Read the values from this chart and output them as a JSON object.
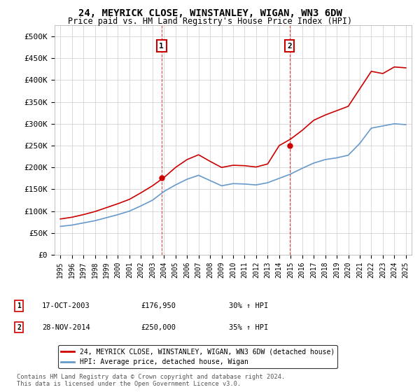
{
  "title": "24, MEYRICK CLOSE, WINSTANLEY, WIGAN, WN3 6DW",
  "subtitle": "Price paid vs. HM Land Registry's House Price Index (HPI)",
  "ylabel_ticks": [
    "£0",
    "£50K",
    "£100K",
    "£150K",
    "£200K",
    "£250K",
    "£300K",
    "£350K",
    "£400K",
    "£450K",
    "£500K"
  ],
  "ytick_vals": [
    0,
    50000,
    100000,
    150000,
    200000,
    250000,
    300000,
    350000,
    400000,
    450000,
    500000
  ],
  "ylim": [
    0,
    525000
  ],
  "xlim_start": 1994.5,
  "xlim_end": 2025.5,
  "xtick_years": [
    1995,
    1996,
    1997,
    1998,
    1999,
    2000,
    2001,
    2002,
    2003,
    2004,
    2005,
    2006,
    2007,
    2008,
    2009,
    2010,
    2011,
    2012,
    2013,
    2014,
    2015,
    2016,
    2017,
    2018,
    2019,
    2020,
    2021,
    2022,
    2023,
    2024,
    2025
  ],
  "purchase1_x": 2003.79,
  "purchase1_y": 176950,
  "purchase1_label": "1",
  "purchase1_date": "17-OCT-2003",
  "purchase1_price": "£176,950",
  "purchase1_hpi": "30% ↑ HPI",
  "purchase2_x": 2014.91,
  "purchase2_y": 250000,
  "purchase2_label": "2",
  "purchase2_date": "28-NOV-2014",
  "purchase2_price": "£250,000",
  "purchase2_hpi": "35% ↑ HPI",
  "line1_color": "#cc0000",
  "line2_color": "#6699cc",
  "legend1_label": "24, MEYRICK CLOSE, WINSTANLEY, WIGAN, WN3 6DW (detached house)",
  "legend2_label": "HPI: Average price, detached house, Wigan",
  "footnote": "Contains HM Land Registry data © Crown copyright and database right 2024.\nThis data is licensed under the Open Government Licence v3.0.",
  "background_color": "#ffffff",
  "grid_color": "#cccccc",
  "vline_color": "#cc0000",
  "marker_box_color": "#cc0000",
  "years_hpi": [
    1995,
    1996,
    1997,
    1998,
    1999,
    2000,
    2001,
    2002,
    2003,
    2004,
    2005,
    2006,
    2007,
    2008,
    2009,
    2010,
    2011,
    2012,
    2013,
    2014,
    2015,
    2016,
    2017,
    2018,
    2019,
    2020,
    2021,
    2022,
    2023,
    2024,
    2025
  ],
  "hpi_vals": [
    65000,
    68000,
    73000,
    78000,
    85000,
    92000,
    100000,
    112000,
    125000,
    145000,
    160000,
    173000,
    182000,
    170000,
    158000,
    163000,
    162000,
    160000,
    165000,
    175000,
    185000,
    198000,
    210000,
    218000,
    222000,
    228000,
    255000,
    290000,
    295000,
    300000,
    298000
  ],
  "red_vals": [
    82000,
    86000,
    92000,
    99000,
    108000,
    117000,
    127000,
    142000,
    158000,
    176950,
    200000,
    218000,
    229000,
    214000,
    200000,
    205000,
    204000,
    201000,
    208000,
    250000,
    265000,
    285000,
    308000,
    320000,
    330000,
    340000,
    380000,
    420000,
    415000,
    430000,
    428000
  ]
}
